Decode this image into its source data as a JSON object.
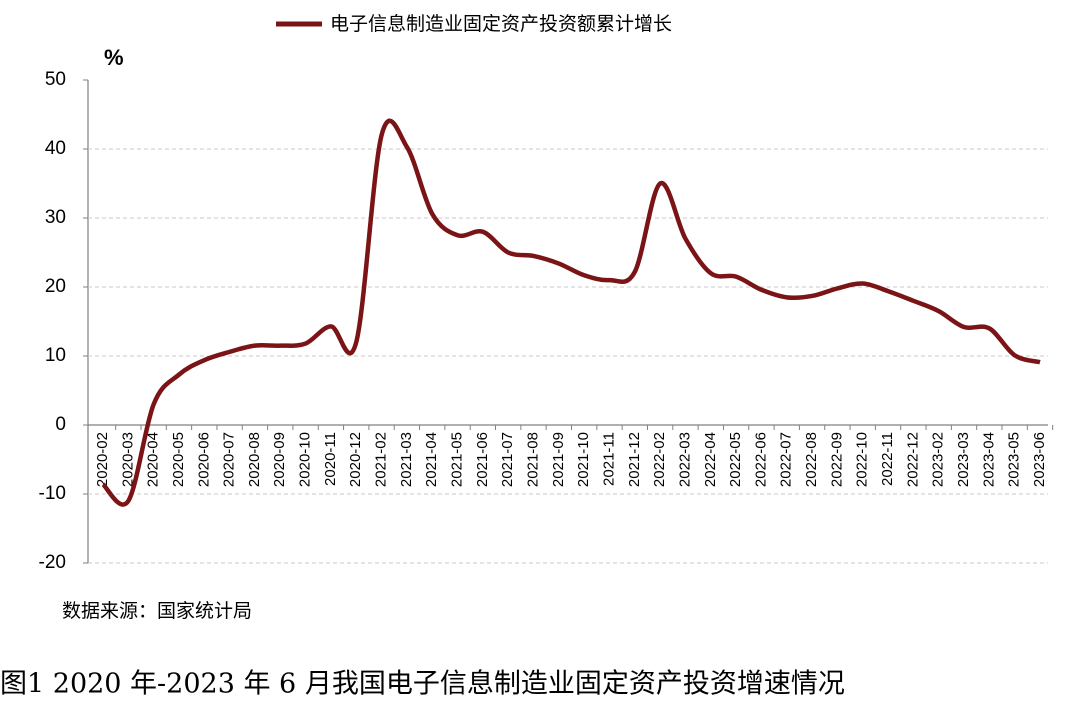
{
  "chart_data": {
    "type": "line",
    "title": "%",
    "caption": "图1 2020 年-2023 年 6 月我国电子信息制造业固定资产投资增速情况",
    "source": "数据来源：国家统计局",
    "categories": [
      "2020-02",
      "2020-03",
      "2020-04",
      "2020-05",
      "2020-06",
      "2020-07",
      "2020-08",
      "2020-09",
      "2020-10",
      "2020-11",
      "2020-12",
      "2021-02",
      "2021-03",
      "2021-04",
      "2021-05",
      "2021-06",
      "2021-07",
      "2021-08",
      "2021-09",
      "2021-10",
      "2021-11",
      "2021-12",
      "2022-02",
      "2022-03",
      "2022-04",
      "2022-05",
      "2022-06",
      "2022-07",
      "2022-08",
      "2022-09",
      "2022-10",
      "2022-11",
      "2022-12",
      "2023-02",
      "2023-03",
      "2023-04",
      "2023-05",
      "2023-06"
    ],
    "series": [
      {
        "name": "电子信息制造业固定资产投资额累计增长",
        "color": "#7b1416",
        "values": [
          -8.6,
          -11.0,
          3.0,
          7.3,
          9.4,
          10.6,
          11.5,
          11.5,
          11.8,
          14.3,
          12.0,
          42.0,
          40.3,
          30.6,
          27.5,
          28.0,
          25.0,
          24.5,
          23.4,
          21.7,
          21.0,
          22.2,
          35.0,
          27.0,
          22.0,
          21.5,
          19.6,
          18.5,
          18.7,
          19.8,
          20.5,
          19.4,
          18.0,
          16.5,
          14.2,
          14.0,
          10.1,
          9.1
        ]
      }
    ],
    "ylim": [
      -20,
      50
    ],
    "yticks": [
      -20,
      -10,
      0,
      10,
      20,
      30,
      40,
      50
    ],
    "grid": true,
    "legend": "top"
  }
}
